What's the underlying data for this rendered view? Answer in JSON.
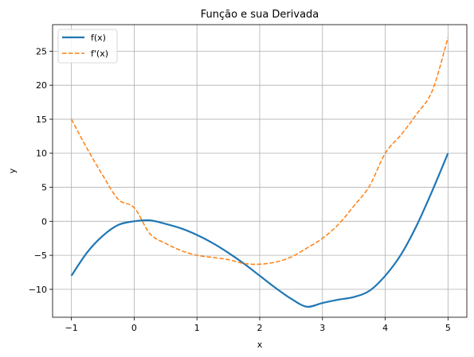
{
  "chart_data": {
    "type": "line",
    "title": "Função e sua Derivada",
    "xlabel": "x",
    "ylabel": "y",
    "xlim": [
      -1.3,
      5.3
    ],
    "ylim": [
      -14.1,
      28.9
    ],
    "x_ticks": [
      -1,
      0,
      1,
      2,
      3,
      4,
      5
    ],
    "y_ticks": [
      -10,
      -5,
      0,
      5,
      10,
      15,
      20,
      25
    ],
    "grid": true,
    "legend_position": "top-left",
    "x": [
      -1,
      -0.75,
      -0.5,
      -0.25,
      0,
      0.25,
      0.5,
      0.75,
      1,
      1.25,
      1.5,
      1.75,
      2,
      2.25,
      2.5,
      2.75,
      3,
      3.25,
      3.5,
      3.75,
      4,
      4.25,
      4.5,
      4.75,
      5
    ],
    "series": [
      {
        "name": "f(x)",
        "color": "#1f77b4",
        "style": "solid",
        "values": [
          -8,
          -4.58,
          -2.13,
          -0.52,
          0,
          0.14,
          -0.38,
          -1.05,
          -2,
          -3.2,
          -4.63,
          -6.23,
          -8,
          -9.78,
          -11.38,
          -12.55,
          -12,
          -11.52,
          -11.13,
          -10.2,
          -8,
          -4.91,
          -0.63,
          4.5,
          10
        ]
      },
      {
        "name": "f'(x)",
        "color": "#ff7f0e",
        "style": "dashed",
        "values": [
          15,
          10.69,
          6.75,
          3.19,
          2,
          -1.81,
          -3.25,
          -4.31,
          -5,
          -5.31,
          -5.63,
          -6.2,
          -6.3,
          -6,
          -5.25,
          -3.94,
          -2.5,
          -0.5,
          2.25,
          5.19,
          10,
          12.69,
          15.75,
          19.19,
          27
        ]
      }
    ]
  }
}
